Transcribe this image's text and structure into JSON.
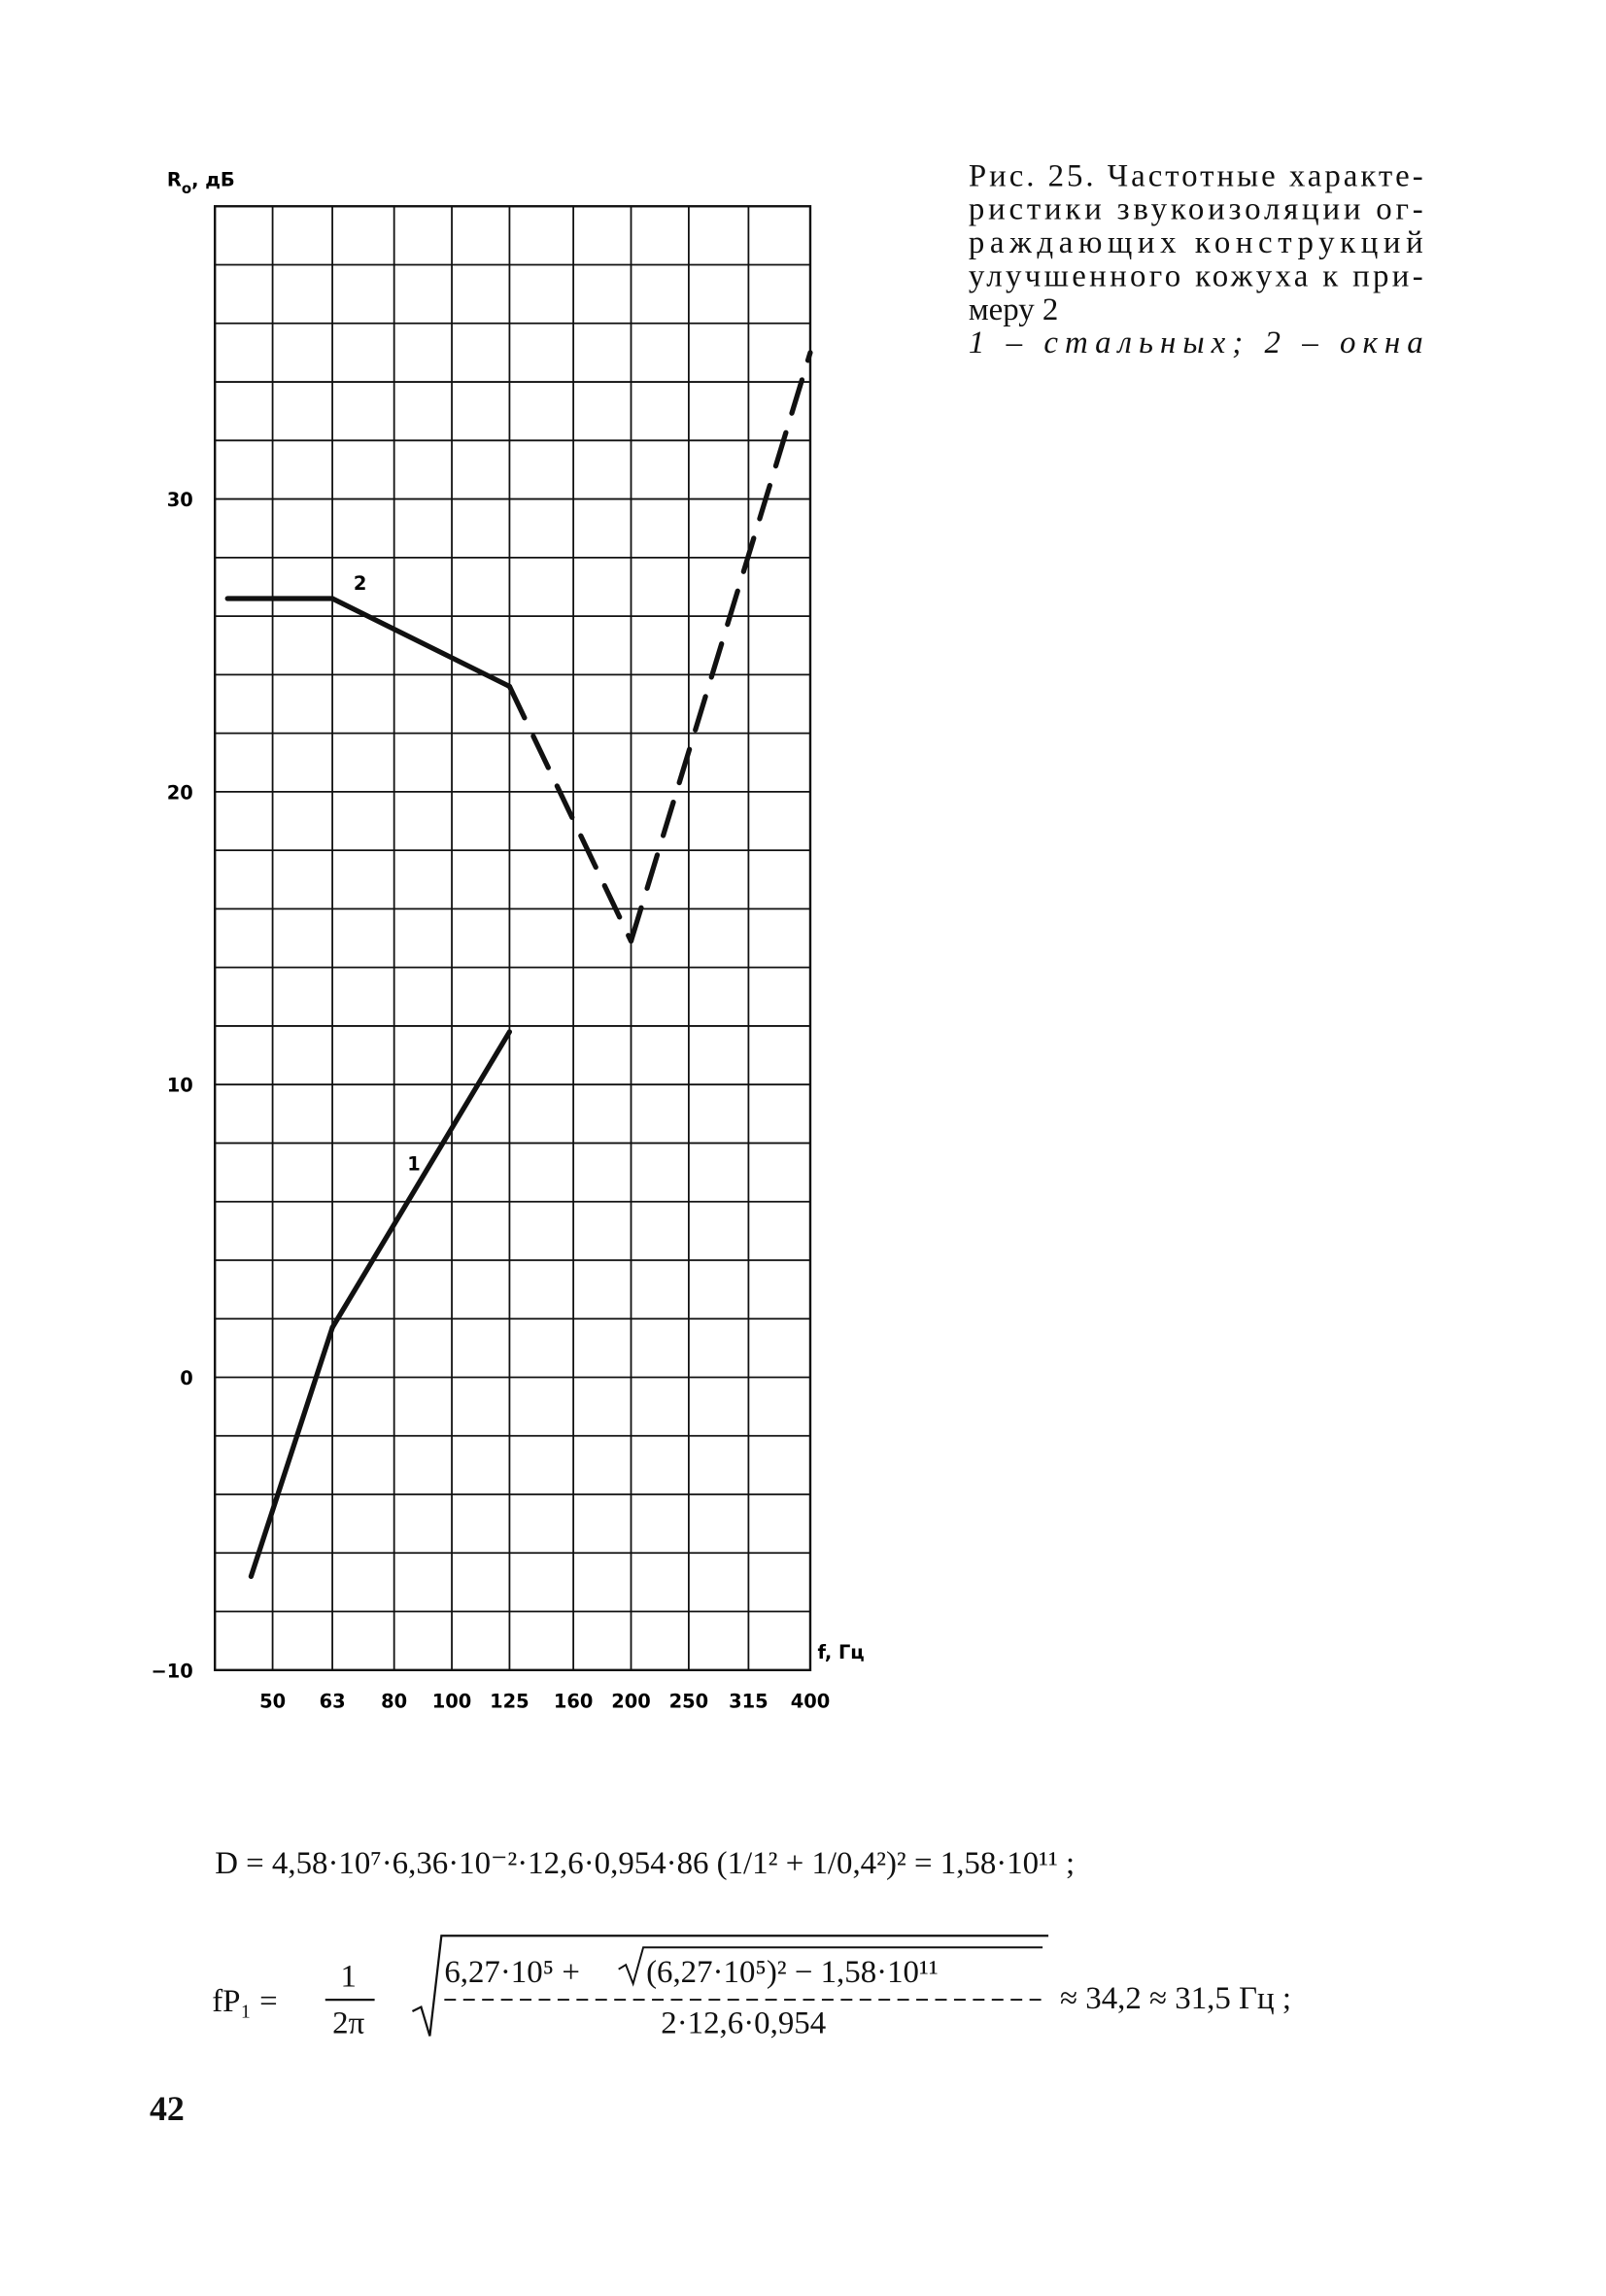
{
  "chart_data": {
    "type": "line",
    "y_label": [
      "R",
      "o",
      ", дБ"
    ],
    "x_label": "f, Гц",
    "x_log": true,
    "xlim": [
      40,
      400
    ],
    "xticks": [
      50,
      63,
      80,
      100,
      125,
      160,
      200,
      250,
      315,
      400
    ],
    "ylim": [
      -10,
      40
    ],
    "yticks": [
      {
        "value": -10,
        "label": "−10"
      },
      0,
      10,
      20,
      30
    ],
    "ygrid": [
      -8,
      -6,
      -4,
      -2,
      0,
      2,
      4,
      6,
      8,
      10,
      12,
      14,
      16,
      18,
      20,
      22,
      24,
      26,
      28,
      30,
      32,
      34,
      36,
      38
    ],
    "grid": true,
    "series": [
      {
        "name": "1",
        "color": "#111111",
        "x": [
          46,
          63,
          125
        ],
        "values": [
          -6.8,
          1.7,
          11.8
        ],
        "segment_styles": [
          "solid",
          "solid"
        ]
      },
      {
        "name": "2",
        "color": "#111111",
        "x": [
          42,
          63,
          125,
          200,
          400
        ],
        "values": [
          26.6,
          26.6,
          23.6,
          14.9,
          35
        ],
        "segment_styles": [
          "solid",
          "solid",
          "dashed",
          "dashed"
        ]
      }
    ]
  },
  "caption": {
    "lines": [
      "Рис. 25. Частотные характе-",
      "ристики звукоизоляции ог-",
      "раждающих конструкций",
      "улучшенного кожуха к при-",
      "меру 2"
    ],
    "legend_line": "1 – стальных; 2 – окна"
  },
  "formulas": {
    "d_line": "D = 4,58·10⁷·6,36·10⁻²·12,6·0,954·86 (1/1² + 1/0,4²)² = 1,58·10¹¹ ;",
    "f_lhs": "fP₁ =",
    "f_one": "1",
    "f_two_pi": "2π",
    "f_num": "6,27·10⁵ +",
    "f_inner": "(6,27·10⁵)² − 1,58·10¹¹",
    "f_den": "2·12,6·0,954",
    "f_result": "≈ 34,2 ≈ 31,5 Гц ;"
  },
  "page_number": "42"
}
